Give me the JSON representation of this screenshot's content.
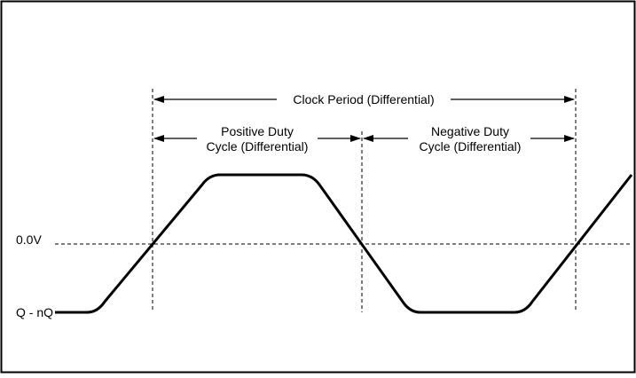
{
  "diagram": {
    "labels": {
      "zero_level": "0.0V",
      "low_level": "Q - nQ",
      "clock_period": "Clock Period (Differential)",
      "positive_duty_line1": "Positive Duty",
      "positive_duty_line2": "Cycle (Differential)",
      "negative_duty_line1": "Negative Duty",
      "negative_duty_line2": "Cycle (Differential)"
    },
    "colors": {
      "line": "#000000",
      "background": "#ffffff"
    }
  }
}
